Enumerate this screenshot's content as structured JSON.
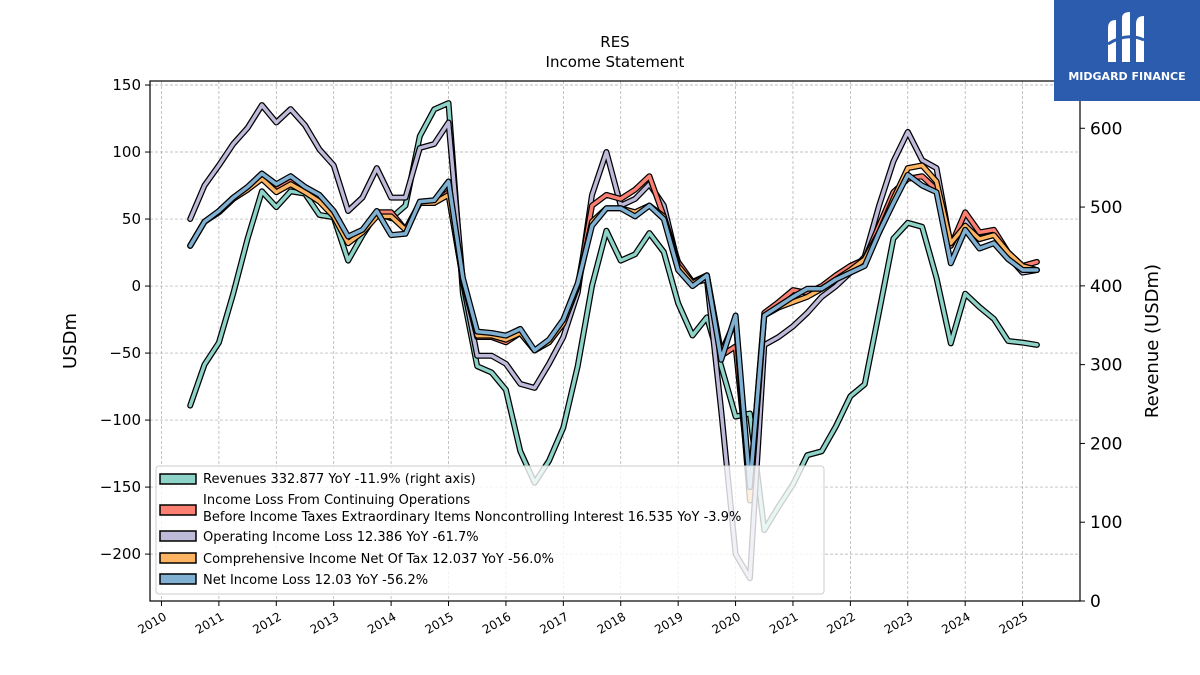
{
  "brand": {
    "name": "MIDGARD FINANCE"
  },
  "chart_data": {
    "type": "line",
    "title": "RES",
    "subtitle": "Income Statement",
    "ylabel": "USDm",
    "y2label": "Revenue (USDm)",
    "ylim": [
      -235,
      153
    ],
    "y2lim": [
      0,
      660
    ],
    "xlim": [
      2009.8,
      2026.0
    ],
    "yticks": [
      150,
      100,
      50,
      0,
      -50,
      -100,
      -150,
      -200
    ],
    "y2ticks": [
      600,
      500,
      400,
      300,
      200,
      100,
      0
    ],
    "xticks": [
      "2010",
      "2011",
      "2012",
      "2013",
      "2014",
      "2015",
      "2016",
      "2017",
      "2018",
      "2019",
      "2020",
      "2021",
      "2022",
      "2023",
      "2024",
      "2025"
    ],
    "grid": true,
    "legend_position": "lower-left",
    "series": [
      {
        "name": "Revenues  332.877 YoY -11.9% (right axis)",
        "color": "#8dd3c7",
        "axis": "right",
        "x": [
          2010.5,
          2010.75,
          2011.0,
          2011.25,
          2011.5,
          2011.75,
          2012.0,
          2012.25,
          2012.5,
          2012.75,
          2013.0,
          2013.25,
          2013.5,
          2013.75,
          2014.0,
          2014.25,
          2014.5,
          2014.75,
          2015.0,
          2015.25,
          2015.5,
          2015.75,
          2016.0,
          2016.25,
          2016.5,
          2016.75,
          2017.0,
          2017.25,
          2017.5,
          2017.75,
          2018.0,
          2018.25,
          2018.5,
          2018.75,
          2019.0,
          2019.25,
          2019.5,
          2019.75,
          2020.0,
          2020.25,
          2020.5,
          2020.75,
          2021.0,
          2021.25,
          2021.5,
          2021.75,
          2022.0,
          2022.25,
          2022.5,
          2022.75,
          2023.0,
          2023.25,
          2023.5,
          2023.75,
          2024.0,
          2024.25,
          2024.5,
          2024.75,
          2025.0,
          2025.25
        ],
        "y": [
          248,
          300,
          328,
          390,
          460,
          520,
          500,
          520,
          517,
          490,
          487,
          432,
          464,
          492,
          486,
          502,
          590,
          624,
          632,
          390,
          298,
          290,
          268,
          190,
          150,
          178,
          220,
          298,
          400,
          470,
          432,
          440,
          467,
          443,
          378,
          337,
          360,
          298,
          234,
          238,
          90,
          120,
          148,
          185,
          190,
          222,
          260,
          275,
          367,
          460,
          480,
          475,
          410,
          327,
          390,
          373,
          358,
          330,
          328,
          325
        ]
      },
      {
        "name": "Income Loss From Continuing Operations Before Income Taxes Extraordinary Items Noncontrolling Interest  16.535 YoY -3.9%",
        "name_line1": "Income Loss From Continuing Operations",
        "name_line2": "Before Income Taxes Extraordinary Items Noncontrolling Interest  16.535 YoY -3.9%",
        "color": "#fb8072",
        "axis": "left",
        "x": [
          2010.5,
          2010.75,
          2011.0,
          2011.25,
          2011.5,
          2011.75,
          2012.0,
          2012.25,
          2012.5,
          2012.75,
          2013.0,
          2013.25,
          2013.5,
          2013.75,
          2014.0,
          2014.25,
          2014.5,
          2014.75,
          2015.0,
          2015.25,
          2015.5,
          2015.75,
          2016.0,
          2016.25,
          2016.5,
          2016.75,
          2017.0,
          2017.25,
          2017.5,
          2017.75,
          2018.0,
          2018.25,
          2018.5,
          2018.75,
          2019.0,
          2019.25,
          2019.5,
          2019.75,
          2020.0,
          2020.25,
          2020.5,
          2020.75,
          2021.0,
          2021.25,
          2021.5,
          2021.75,
          2022.0,
          2022.25,
          2022.5,
          2022.75,
          2023.0,
          2023.25,
          2023.5,
          2023.75,
          2024.0,
          2024.25,
          2024.5,
          2024.75,
          2025.0,
          2025.25
        ],
        "y": [
          30,
          48,
          55,
          65,
          72,
          82,
          72,
          78,
          72,
          65,
          55,
          35,
          40,
          55,
          55,
          42,
          62,
          62,
          70,
          5,
          -38,
          -38,
          -42,
          -35,
          -48,
          -42,
          -28,
          0,
          60,
          68,
          65,
          72,
          82,
          52,
          18,
          3,
          8,
          -52,
          -45,
          -150,
          -20,
          -12,
          -3,
          -5,
          0,
          8,
          15,
          20,
          45,
          70,
          80,
          82,
          72,
          30,
          55,
          40,
          42,
          25,
          15,
          18
        ]
      },
      {
        "name": "Operating Income Loss  12.386 YoY -61.7%",
        "color": "#bebada",
        "axis": "left",
        "x": [
          2010.5,
          2010.75,
          2011.0,
          2011.25,
          2011.5,
          2011.75,
          2012.0,
          2012.25,
          2012.5,
          2012.75,
          2013.0,
          2013.25,
          2013.5,
          2013.75,
          2014.0,
          2014.25,
          2014.5,
          2014.75,
          2015.0,
          2015.25,
          2015.5,
          2015.75,
          2016.0,
          2016.25,
          2016.5,
          2016.75,
          2017.0,
          2017.25,
          2017.5,
          2017.75,
          2018.0,
          2018.25,
          2018.5,
          2018.75,
          2019.0,
          2019.25,
          2019.5,
          2019.75,
          2020.0,
          2020.25,
          2020.5,
          2020.75,
          2021.0,
          2021.25,
          2021.5,
          2021.75,
          2022.0,
          2022.25,
          2022.5,
          2022.75,
          2023.0,
          2023.25,
          2023.5,
          2023.75,
          2024.0,
          2024.25,
          2024.5,
          2024.75,
          2025.0,
          2025.25
        ],
        "y": [
          50,
          75,
          90,
          106,
          118,
          135,
          122,
          132,
          120,
          102,
          90,
          56,
          66,
          88,
          66,
          66,
          103,
          106,
          122,
          3,
          -52,
          -52,
          -58,
          -73,
          -76,
          -58,
          -38,
          -5,
          68,
          100,
          60,
          65,
          76,
          60,
          16,
          2,
          5,
          -93,
          -200,
          -218,
          -44,
          -38,
          -30,
          -20,
          -8,
          0,
          10,
          22,
          60,
          93,
          115,
          94,
          88,
          30,
          50,
          35,
          40,
          22,
          10,
          12
        ]
      },
      {
        "name": "Comprehensive Income Net Of Tax  12.037 YoY -56.0%",
        "color": "#fdb462",
        "axis": "left",
        "x": [
          2010.5,
          2010.75,
          2011.0,
          2011.25,
          2011.5,
          2011.75,
          2012.0,
          2012.25,
          2012.5,
          2012.75,
          2013.0,
          2013.25,
          2013.5,
          2013.75,
          2014.0,
          2014.25,
          2014.5,
          2014.75,
          2015.0,
          2015.25,
          2015.5,
          2015.75,
          2016.0,
          2016.25,
          2016.5,
          2016.75,
          2017.0,
          2017.25,
          2017.5,
          2017.75,
          2018.0,
          2018.25,
          2018.5,
          2018.75,
          2019.0,
          2019.25,
          2019.5,
          2019.75,
          2020.0,
          2020.25,
          2020.5,
          2020.75,
          2021.0,
          2021.25,
          2021.5,
          2021.75,
          2022.0,
          2022.25,
          2022.5,
          2022.75,
          2023.0,
          2023.25,
          2023.5,
          2023.75,
          2024.0,
          2024.25,
          2024.5,
          2024.75,
          2025.0,
          2025.25
        ],
        "y": [
          30,
          48,
          55,
          65,
          72,
          80,
          70,
          76,
          70,
          63,
          52,
          32,
          40,
          52,
          52,
          42,
          62,
          62,
          68,
          5,
          -37,
          -37,
          -40,
          -35,
          -48,
          -42,
          -28,
          0,
          48,
          58,
          58,
          55,
          60,
          52,
          15,
          2,
          8,
          -50,
          -25,
          -160,
          -22,
          -16,
          -12,
          -8,
          -2,
          5,
          12,
          20,
          40,
          65,
          88,
          90,
          78,
          32,
          45,
          35,
          38,
          25,
          15,
          12
        ]
      },
      {
        "name": "Net Income Loss  12.03 YoY -56.2%",
        "color": "#80b1d3",
        "axis": "left",
        "x": [
          2010.5,
          2010.75,
          2011.0,
          2011.25,
          2011.5,
          2011.75,
          2012.0,
          2012.25,
          2012.5,
          2012.75,
          2013.0,
          2013.25,
          2013.5,
          2013.75,
          2014.0,
          2014.25,
          2014.5,
          2014.75,
          2015.0,
          2015.25,
          2015.5,
          2015.75,
          2016.0,
          2016.25,
          2016.5,
          2016.75,
          2017.0,
          2017.25,
          2017.5,
          2017.75,
          2018.0,
          2018.25,
          2018.5,
          2018.75,
          2019.0,
          2019.25,
          2019.5,
          2019.75,
          2020.0,
          2020.25,
          2020.5,
          2020.75,
          2021.0,
          2021.25,
          2021.5,
          2021.75,
          2022.0,
          2022.25,
          2022.5,
          2022.75,
          2023.0,
          2023.25,
          2023.5,
          2023.75,
          2024.0,
          2024.25,
          2024.5,
          2024.75,
          2025.0,
          2025.25
        ],
        "y": [
          30,
          48,
          56,
          66,
          74,
          84,
          76,
          82,
          74,
          68,
          56,
          37,
          42,
          56,
          38,
          39,
          63,
          64,
          78,
          6,
          -34,
          -35,
          -37,
          -32,
          -48,
          -40,
          -25,
          2,
          45,
          58,
          58,
          52,
          60,
          50,
          12,
          0,
          8,
          -55,
          -22,
          -150,
          -22,
          -15,
          -8,
          -2,
          -2,
          5,
          10,
          15,
          40,
          62,
          83,
          75,
          70,
          17,
          42,
          28,
          32,
          20,
          12,
          12
        ]
      }
    ]
  }
}
